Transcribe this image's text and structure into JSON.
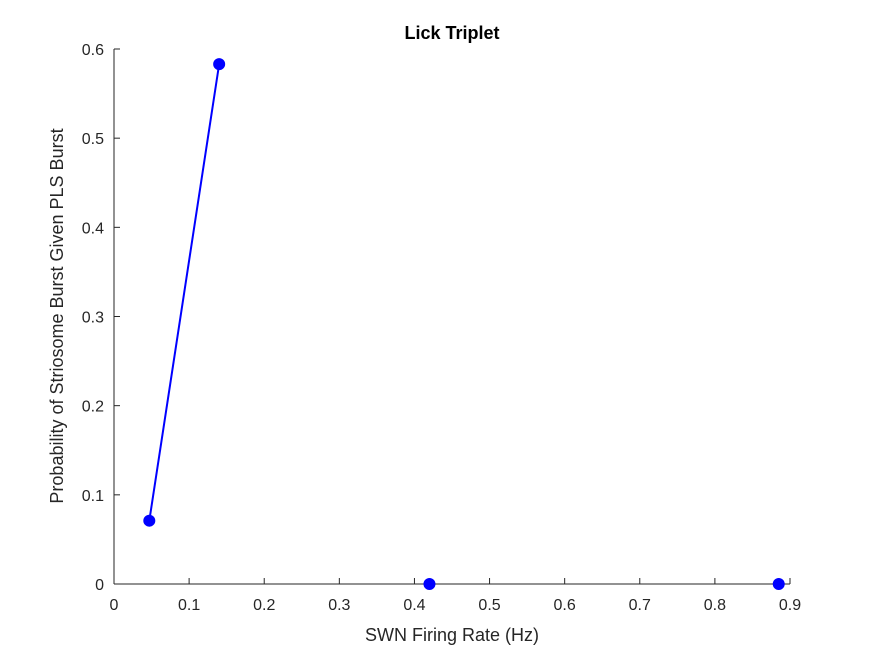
{
  "chart_data": {
    "type": "line",
    "title": "Lick Triplet",
    "xlabel": "SWN Firing Rate (Hz)",
    "ylabel": "Probability of Striosome Burst Given PLS Burst",
    "xlim": [
      0,
      0.9
    ],
    "ylim": [
      0,
      0.6
    ],
    "xticks": [
      0,
      0.1,
      0.2,
      0.3,
      0.4,
      0.5,
      0.6,
      0.7,
      0.8,
      0.9
    ],
    "xtick_labels": [
      "0",
      "0.1",
      "0.2",
      "0.3",
      "0.4",
      "0.5",
      "0.6",
      "0.7",
      "0.8",
      "0.9"
    ],
    "yticks": [
      0,
      0.1,
      0.2,
      0.3,
      0.4,
      0.5,
      0.6
    ],
    "ytick_labels": [
      "0",
      "0.1",
      "0.2",
      "0.3",
      "0.4",
      "0.5",
      "0.6"
    ],
    "grid": false,
    "series": [
      {
        "color": "#0000ff",
        "x": [
          0.047,
          0.14,
          0.42,
          0.885
        ],
        "y": [
          0.071,
          0.583,
          0.0,
          0.0
        ],
        "segments": [
          [
            0,
            1
          ]
        ]
      }
    ]
  }
}
